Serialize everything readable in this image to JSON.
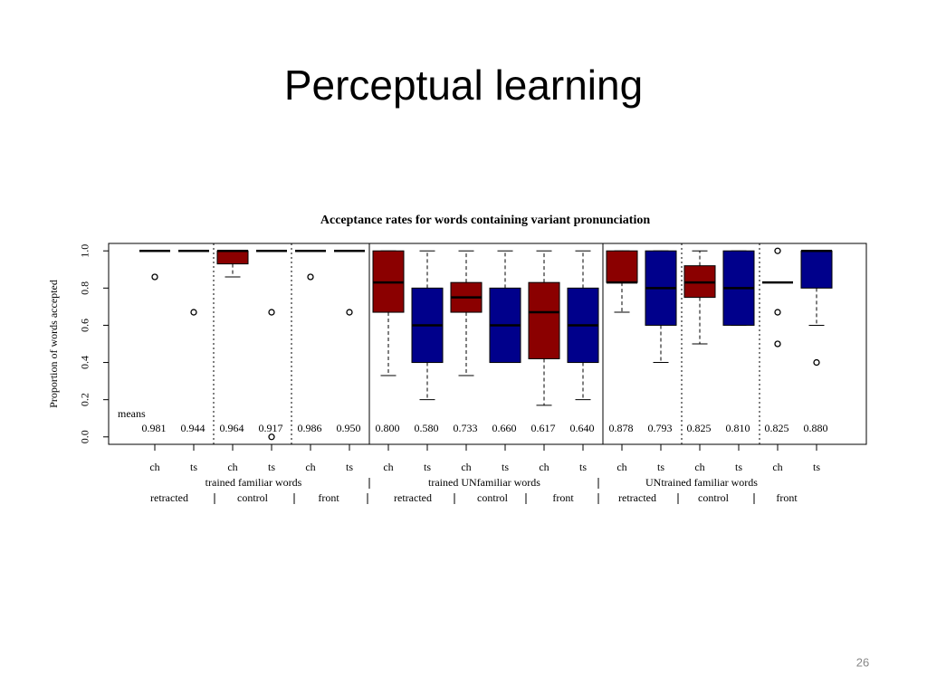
{
  "slide_title": "Perceptual learning",
  "page_number": "26",
  "chart_data": {
    "type": "box",
    "title": "Acceptance rates for words containing variant pronunciation",
    "ylabel": "Proportion of words accepted",
    "ylim": [
      -0.04,
      1.04
    ],
    "yticks": [
      {
        "value": 0,
        "label": "0.0"
      },
      0.2,
      0.4,
      0.6,
      0.8,
      {
        "value": 1,
        "label": "1.0"
      }
    ],
    "categories": [
      "ch",
      "ts",
      "ch",
      "ts",
      "ch",
      "ts",
      "ch",
      "ts",
      "ch",
      "ts",
      "ch",
      "ts",
      "ch",
      "ts",
      "ch",
      "ts",
      "ch",
      "ts"
    ],
    "condition_labels": [
      "retracted",
      "control",
      "front",
      "retracted",
      "control",
      "front",
      "retracted",
      "control",
      "front"
    ],
    "group_labels": [
      "trained familiar words",
      "trained UNfamiliar words",
      "UNtrained familiar words"
    ],
    "boxes": [
      {
        "min": 1,
        "q1": 1,
        "median": 1,
        "q3": 1,
        "max": 1,
        "outliers": [
          0.86
        ],
        "color": "#8b0000"
      },
      {
        "min": 1,
        "q1": 1,
        "median": 1,
        "q3": 1,
        "max": 1,
        "outliers": [
          0.67
        ],
        "color": "#00008b"
      },
      {
        "min": 0.86,
        "q1": 0.93,
        "median": 1,
        "q3": 1,
        "max": 1,
        "outliers": [],
        "color": "#8b0000"
      },
      {
        "min": 1,
        "q1": 1,
        "median": 1,
        "q3": 1,
        "max": 1,
        "outliers": [
          0.67,
          0
        ],
        "color": "#00008b"
      },
      {
        "min": 1,
        "q1": 1,
        "median": 1,
        "q3": 1,
        "max": 1,
        "outliers": [
          0.86
        ],
        "color": "#8b0000"
      },
      {
        "min": 1,
        "q1": 1,
        "median": 1,
        "q3": 1,
        "max": 1,
        "outliers": [
          0.67
        ],
        "color": "#00008b"
      },
      {
        "min": 0.33,
        "q1": 0.67,
        "median": 0.83,
        "q3": 1,
        "max": 1,
        "outliers": [],
        "color": "#8b0000"
      },
      {
        "min": 0.2,
        "q1": 0.4,
        "median": 0.6,
        "q3": 0.8,
        "max": 1,
        "outliers": [],
        "color": "#00008b"
      },
      {
        "min": 0.33,
        "q1": 0.67,
        "median": 0.75,
        "q3": 0.83,
        "max": 1,
        "outliers": [],
        "color": "#8b0000"
      },
      {
        "min": 0.4,
        "q1": 0.4,
        "median": 0.6,
        "q3": 0.8,
        "max": 1,
        "outliers": [],
        "color": "#00008b"
      },
      {
        "min": 0.17,
        "q1": 0.42,
        "median": 0.67,
        "q3": 0.83,
        "max": 1,
        "outliers": [],
        "color": "#8b0000"
      },
      {
        "min": 0.2,
        "q1": 0.4,
        "median": 0.6,
        "q3": 0.8,
        "max": 1,
        "outliers": [],
        "color": "#00008b"
      },
      {
        "min": 0.67,
        "q1": 0.83,
        "median": 0.83,
        "q3": 1,
        "max": 1,
        "outliers": [],
        "color": "#8b0000"
      },
      {
        "min": 0.4,
        "q1": 0.6,
        "median": 0.8,
        "q3": 1,
        "max": 1,
        "outliers": [],
        "color": "#00008b"
      },
      {
        "min": 0.5,
        "q1": 0.75,
        "median": 0.83,
        "q3": 0.92,
        "max": 1,
        "outliers": [],
        "color": "#8b0000"
      },
      {
        "min": 0.6,
        "q1": 0.6,
        "median": 0.8,
        "q3": 1,
        "max": 1,
        "outliers": [],
        "color": "#00008b"
      },
      {
        "min": 0.83,
        "q1": 0.83,
        "median": 0.83,
        "q3": 0.83,
        "max": 0.83,
        "outliers": [
          1,
          0.67,
          0.5
        ],
        "color": "#8b0000"
      },
      {
        "min": 0.6,
        "q1": 0.8,
        "median": 1,
        "q3": 1,
        "max": 1,
        "outliers": [
          0.4
        ],
        "color": "#00008b"
      }
    ],
    "means": {
      "name": "means",
      "values": [
        0.981,
        0.944,
        0.964,
        0.917,
        0.986,
        0.95,
        0.8,
        0.58,
        0.733,
        0.66,
        0.617,
        0.64,
        0.878,
        0.793,
        0.825,
        0.81,
        0.825,
        0.88
      ],
      "value_labels": [
        "0.981",
        "0.944",
        "0.964",
        "0.917",
        "0.986",
        "0.950",
        "0.800",
        "0.580",
        "0.733",
        "0.660",
        "0.617",
        "0.640",
        "0.878",
        "0.793",
        "0.825",
        "0.810",
        "0.825",
        "0.880"
      ]
    }
  }
}
